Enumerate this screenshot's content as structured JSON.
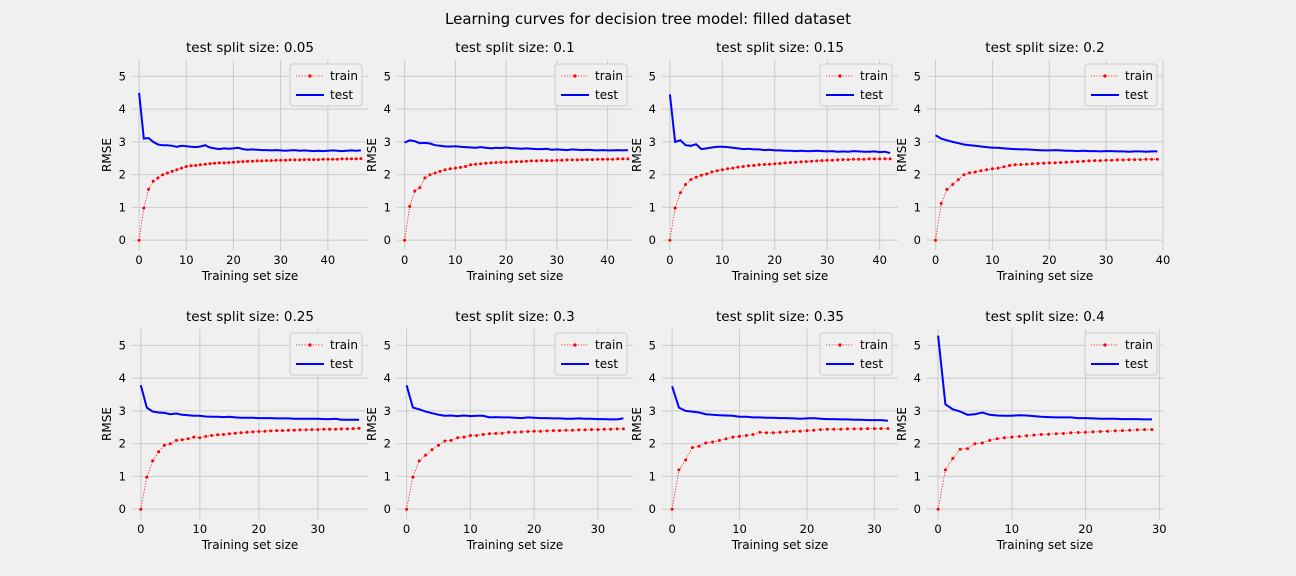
{
  "figure": {
    "suptitle": "Learning curves for decision tree model: filled dataset"
  },
  "colors": {
    "background": "#f0f0f0",
    "grid": "#cbcbcb",
    "train": "#ff0000",
    "test": "#0000ff"
  },
  "chart_data": [
    {
      "type": "line",
      "title": "test split size: 0.05",
      "xlabel": "Training set size",
      "ylabel": "RMSE",
      "xlim": [
        -1.5,
        48.5
      ],
      "ylim": [
        -0.3,
        5.5
      ],
      "xticks": [
        0,
        10,
        20,
        30,
        40
      ],
      "yticks": [
        0,
        1,
        2,
        3,
        4,
        5
      ],
      "legend": "upper right",
      "grid": true,
      "series": [
        {
          "name": "train",
          "style": "dotted-markers",
          "values": [
            0,
            0.98,
            1.55,
            1.8,
            1.9,
            2.0,
            2.05,
            2.1,
            2.15,
            2.2,
            2.25,
            2.27,
            2.28,
            2.3,
            2.32,
            2.33,
            2.35,
            2.36,
            2.36,
            2.37,
            2.38,
            2.39,
            2.4,
            2.41,
            2.41,
            2.42,
            2.42,
            2.43,
            2.43,
            2.44,
            2.44,
            2.44,
            2.45,
            2.45,
            2.45,
            2.46,
            2.46,
            2.46,
            2.46,
            2.47,
            2.47,
            2.47,
            2.47,
            2.48,
            2.48,
            2.48,
            2.48,
            2.49
          ]
        },
        {
          "name": "test",
          "style": "solid",
          "values": [
            4.5,
            3.1,
            3.12,
            3.0,
            2.92,
            2.9,
            2.9,
            2.88,
            2.85,
            2.88,
            2.87,
            2.85,
            2.84,
            2.86,
            2.9,
            2.83,
            2.8,
            2.78,
            2.8,
            2.79,
            2.8,
            2.82,
            2.78,
            2.76,
            2.77,
            2.76,
            2.75,
            2.75,
            2.74,
            2.75,
            2.74,
            2.73,
            2.74,
            2.75,
            2.73,
            2.74,
            2.73,
            2.72,
            2.73,
            2.72,
            2.73,
            2.74,
            2.73,
            2.72,
            2.73,
            2.74,
            2.73,
            2.74
          ]
        }
      ]
    },
    {
      "type": "line",
      "title": "test split size: 0.1",
      "xlabel": "Training set size",
      "ylabel": "RMSE",
      "xlim": [
        -1.5,
        45.0
      ],
      "ylim": [
        -0.3,
        5.5
      ],
      "xticks": [
        0,
        10,
        20,
        30,
        40
      ],
      "yticks": [
        0,
        1,
        2,
        3,
        4,
        5
      ],
      "legend": "upper right",
      "grid": true,
      "series": [
        {
          "name": "train",
          "style": "dotted-markers",
          "values": [
            0,
            1.03,
            1.5,
            1.6,
            1.9,
            2.0,
            2.05,
            2.1,
            2.15,
            2.18,
            2.2,
            2.22,
            2.25,
            2.3,
            2.32,
            2.33,
            2.35,
            2.36,
            2.37,
            2.38,
            2.38,
            2.39,
            2.4,
            2.4,
            2.41,
            2.42,
            2.42,
            2.43,
            2.43,
            2.43,
            2.44,
            2.44,
            2.45,
            2.45,
            2.45,
            2.46,
            2.46,
            2.46,
            2.47,
            2.47,
            2.47,
            2.47,
            2.48,
            2.48,
            2.48
          ]
        },
        {
          "name": "test",
          "style": "solid",
          "values": [
            2.98,
            3.05,
            3.02,
            2.96,
            2.97,
            2.95,
            2.9,
            2.88,
            2.86,
            2.86,
            2.87,
            2.85,
            2.84,
            2.83,
            2.82,
            2.84,
            2.82,
            2.8,
            2.82,
            2.81,
            2.83,
            2.81,
            2.8,
            2.79,
            2.8,
            2.79,
            2.78,
            2.78,
            2.79,
            2.76,
            2.77,
            2.76,
            2.75,
            2.77,
            2.76,
            2.75,
            2.76,
            2.75,
            2.74,
            2.75,
            2.74,
            2.74,
            2.75,
            2.74,
            2.75
          ]
        }
      ]
    },
    {
      "type": "line",
      "title": "test split size: 0.15",
      "xlabel": "Training set size",
      "ylabel": "RMSE",
      "xlim": [
        -1.5,
        43.5
      ],
      "ylim": [
        -0.3,
        5.5
      ],
      "xticks": [
        0,
        10,
        20,
        30,
        40
      ],
      "yticks": [
        0,
        1,
        2,
        3,
        4,
        5
      ],
      "legend": "upper right",
      "grid": true,
      "series": [
        {
          "name": "train",
          "style": "dotted-markers",
          "values": [
            0,
            0.98,
            1.45,
            1.7,
            1.85,
            1.92,
            1.98,
            2.02,
            2.08,
            2.12,
            2.15,
            2.18,
            2.2,
            2.23,
            2.25,
            2.27,
            2.28,
            2.3,
            2.31,
            2.32,
            2.33,
            2.34,
            2.36,
            2.37,
            2.38,
            2.39,
            2.4,
            2.41,
            2.42,
            2.43,
            2.44,
            2.44,
            2.45,
            2.46,
            2.46,
            2.47,
            2.47,
            2.47,
            2.48,
            2.48,
            2.48,
            2.48,
            2.48
          ]
        },
        {
          "name": "test",
          "style": "solid",
          "values": [
            4.45,
            3.0,
            3.05,
            2.9,
            2.88,
            2.93,
            2.78,
            2.8,
            2.83,
            2.85,
            2.85,
            2.84,
            2.82,
            2.8,
            2.78,
            2.79,
            2.77,
            2.77,
            2.75,
            2.76,
            2.74,
            2.74,
            2.73,
            2.73,
            2.72,
            2.73,
            2.72,
            2.72,
            2.73,
            2.72,
            2.71,
            2.72,
            2.7,
            2.71,
            2.7,
            2.72,
            2.71,
            2.7,
            2.7,
            2.71,
            2.69,
            2.7,
            2.66
          ]
        }
      ]
    },
    {
      "type": "line",
      "title": "test split size: 0.2",
      "xlabel": "Training set size",
      "ylabel": "RMSE",
      "xlim": [
        -1.5,
        40.0
      ],
      "ylim": [
        -0.3,
        5.5
      ],
      "xticks": [
        0,
        10,
        20,
        30,
        40
      ],
      "yticks": [
        0,
        1,
        2,
        3,
        4,
        5
      ],
      "legend": "upper right",
      "grid": true,
      "series": [
        {
          "name": "train",
          "style": "dotted-markers",
          "values": [
            0,
            1.12,
            1.55,
            1.7,
            1.85,
            2.0,
            2.06,
            2.08,
            2.12,
            2.15,
            2.18,
            2.2,
            2.24,
            2.28,
            2.3,
            2.31,
            2.32,
            2.33,
            2.34,
            2.35,
            2.36,
            2.36,
            2.37,
            2.38,
            2.39,
            2.4,
            2.41,
            2.42,
            2.43,
            2.43,
            2.44,
            2.44,
            2.45,
            2.45,
            2.46,
            2.46,
            2.46,
            2.47,
            2.47,
            2.47
          ]
        },
        {
          "name": "test",
          "style": "solid",
          "values": [
            3.2,
            3.1,
            3.05,
            3.0,
            2.96,
            2.92,
            2.9,
            2.88,
            2.86,
            2.84,
            2.82,
            2.82,
            2.8,
            2.79,
            2.78,
            2.77,
            2.77,
            2.76,
            2.75,
            2.74,
            2.74,
            2.75,
            2.74,
            2.73,
            2.73,
            2.72,
            2.73,
            2.72,
            2.72,
            2.71,
            2.72,
            2.72,
            2.71,
            2.71,
            2.7,
            2.71,
            2.71,
            2.7,
            2.71,
            2.71
          ]
        }
      ]
    },
    {
      "type": "line",
      "title": "test split size: 0.25",
      "xlabel": "Training set size",
      "ylabel": "RMSE",
      "xlim": [
        -1.5,
        38.5
      ],
      "ylim": [
        -0.3,
        5.5
      ],
      "xticks": [
        0,
        10,
        20,
        30
      ],
      "yticks": [
        0,
        1,
        2,
        3,
        4,
        5
      ],
      "legend": "upper right",
      "grid": true,
      "series": [
        {
          "name": "train",
          "style": "dotted-markers",
          "values": [
            0,
            0.98,
            1.48,
            1.75,
            1.95,
            2.0,
            2.1,
            2.12,
            2.15,
            2.2,
            2.18,
            2.22,
            2.25,
            2.27,
            2.28,
            2.3,
            2.32,
            2.33,
            2.35,
            2.36,
            2.37,
            2.38,
            2.39,
            2.4,
            2.4,
            2.41,
            2.41,
            2.42,
            2.42,
            2.43,
            2.43,
            2.44,
            2.44,
            2.44,
            2.45,
            2.45,
            2.46,
            2.47
          ]
        },
        {
          "name": "test",
          "style": "solid",
          "values": [
            3.78,
            3.1,
            2.98,
            2.95,
            2.94,
            2.9,
            2.92,
            2.88,
            2.87,
            2.85,
            2.85,
            2.83,
            2.82,
            2.82,
            2.81,
            2.82,
            2.8,
            2.79,
            2.79,
            2.79,
            2.78,
            2.78,
            2.78,
            2.77,
            2.77,
            2.77,
            2.76,
            2.76,
            2.76,
            2.76,
            2.76,
            2.75,
            2.75,
            2.76,
            2.73,
            2.73,
            2.73,
            2.73
          ]
        }
      ]
    },
    {
      "type": "line",
      "title": "test split size: 0.3",
      "xlabel": "Training set size",
      "ylabel": "RMSE",
      "xlim": [
        -1.5,
        35.5
      ],
      "ylim": [
        -0.3,
        5.5
      ],
      "xticks": [
        0,
        10,
        20,
        30
      ],
      "yticks": [
        0,
        1,
        2,
        3,
        4,
        5
      ],
      "legend": "upper right",
      "grid": true,
      "series": [
        {
          "name": "train",
          "style": "dotted-markers",
          "values": [
            0,
            0.98,
            1.48,
            1.65,
            1.82,
            1.95,
            2.08,
            2.1,
            2.18,
            2.2,
            2.25,
            2.25,
            2.28,
            2.3,
            2.31,
            2.32,
            2.35,
            2.35,
            2.36,
            2.37,
            2.38,
            2.38,
            2.39,
            2.4,
            2.4,
            2.41,
            2.41,
            2.42,
            2.42,
            2.43,
            2.43,
            2.44,
            2.44,
            2.45,
            2.45
          ]
        },
        {
          "name": "test",
          "style": "solid",
          "values": [
            3.78,
            3.1,
            3.05,
            2.98,
            2.93,
            2.88,
            2.85,
            2.86,
            2.84,
            2.86,
            2.84,
            2.85,
            2.85,
            2.8,
            2.81,
            2.8,
            2.8,
            2.79,
            2.78,
            2.8,
            2.79,
            2.78,
            2.78,
            2.77,
            2.77,
            2.76,
            2.76,
            2.77,
            2.76,
            2.76,
            2.75,
            2.75,
            2.74,
            2.74,
            2.77
          ]
        }
      ]
    },
    {
      "type": "line",
      "title": "test split size: 0.35",
      "xlabel": "Training set size",
      "ylabel": "RMSE",
      "xlim": [
        -1.5,
        33.5
      ],
      "ylim": [
        -0.3,
        5.5
      ],
      "xticks": [
        0,
        10,
        20,
        30
      ],
      "yticks": [
        0,
        1,
        2,
        3,
        4,
        5
      ],
      "legend": "upper right",
      "grid": true,
      "series": [
        {
          "name": "train",
          "style": "dotted-markers",
          "values": [
            0,
            1.2,
            1.5,
            1.88,
            1.92,
            2.02,
            2.05,
            2.1,
            2.15,
            2.2,
            2.22,
            2.25,
            2.28,
            2.35,
            2.33,
            2.33,
            2.35,
            2.36,
            2.38,
            2.38,
            2.4,
            2.41,
            2.43,
            2.44,
            2.44,
            2.44,
            2.45,
            2.45,
            2.45,
            2.46,
            2.46,
            2.46,
            2.46
          ]
        },
        {
          "name": "test",
          "style": "solid",
          "values": [
            3.75,
            3.1,
            3.0,
            2.98,
            2.95,
            2.9,
            2.88,
            2.87,
            2.86,
            2.85,
            2.82,
            2.82,
            2.8,
            2.8,
            2.79,
            2.79,
            2.78,
            2.78,
            2.77,
            2.76,
            2.77,
            2.78,
            2.76,
            2.75,
            2.75,
            2.74,
            2.74,
            2.73,
            2.73,
            2.72,
            2.72,
            2.72,
            2.7
          ]
        }
      ]
    },
    {
      "type": "line",
      "title": "test split size: 0.4",
      "xlabel": "Training set size",
      "ylabel": "RMSE",
      "xlim": [
        -1.5,
        30.5
      ],
      "ylim": [
        -0.3,
        5.5
      ],
      "xticks": [
        0,
        10,
        20,
        30
      ],
      "yticks": [
        0,
        1,
        2,
        3,
        4,
        5
      ],
      "legend": "upper right",
      "grid": true,
      "series": [
        {
          "name": "train",
          "style": "dotted-markers",
          "values": [
            0,
            1.2,
            1.55,
            1.83,
            1.85,
            2.0,
            2.02,
            2.1,
            2.15,
            2.18,
            2.2,
            2.22,
            2.24,
            2.26,
            2.28,
            2.29,
            2.3,
            2.31,
            2.33,
            2.34,
            2.35,
            2.36,
            2.37,
            2.38,
            2.39,
            2.4,
            2.41,
            2.42,
            2.43,
            2.43
          ]
        },
        {
          "name": "test",
          "style": "solid",
          "values": [
            5.3,
            3.2,
            3.05,
            2.98,
            2.88,
            2.9,
            2.95,
            2.88,
            2.86,
            2.85,
            2.85,
            2.87,
            2.86,
            2.84,
            2.82,
            2.81,
            2.8,
            2.8,
            2.8,
            2.78,
            2.78,
            2.77,
            2.76,
            2.76,
            2.76,
            2.75,
            2.75,
            2.75,
            2.74,
            2.74
          ]
        }
      ]
    }
  ]
}
